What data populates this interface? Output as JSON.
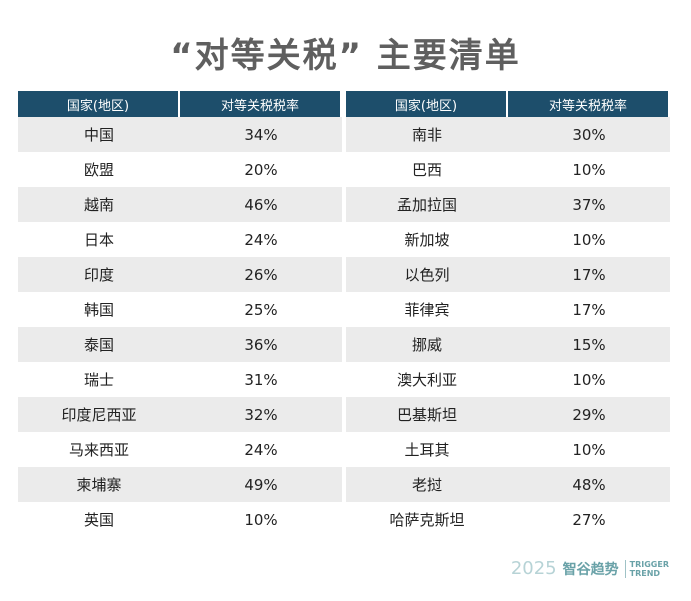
{
  "title": "“对等关税” 主要清单",
  "table": {
    "headers": [
      "国家(地区)",
      "对等关税税率",
      "国家(地区)",
      "对等关税税率"
    ],
    "rows": [
      [
        "中国",
        "34%",
        "南非",
        "30%"
      ],
      [
        "欧盟",
        "20%",
        "巴西",
        "10%"
      ],
      [
        "越南",
        "46%",
        "孟加拉国",
        "37%"
      ],
      [
        "日本",
        "24%",
        "新加坡",
        "10%"
      ],
      [
        "印度",
        "26%",
        "以色列",
        "17%"
      ],
      [
        "韩国",
        "25%",
        "菲律宾",
        "17%"
      ],
      [
        "泰国",
        "36%",
        "挪威",
        "15%"
      ],
      [
        "瑞士",
        "31%",
        "澳大利亚",
        "10%"
      ],
      [
        "印度尼西亚",
        "32%",
        "巴基斯坦",
        "29%"
      ],
      [
        "马来西亚",
        "24%",
        "土耳其",
        "10%"
      ],
      [
        "柬埔寨",
        "49%",
        "老挝",
        "48%"
      ],
      [
        "英国",
        "10%",
        "哈萨克斯坦",
        "27%"
      ]
    ]
  },
  "watermark": {
    "year": "2025",
    "name": "智谷趋势",
    "english": [
      "TRIGGER",
      "TREND"
    ]
  }
}
